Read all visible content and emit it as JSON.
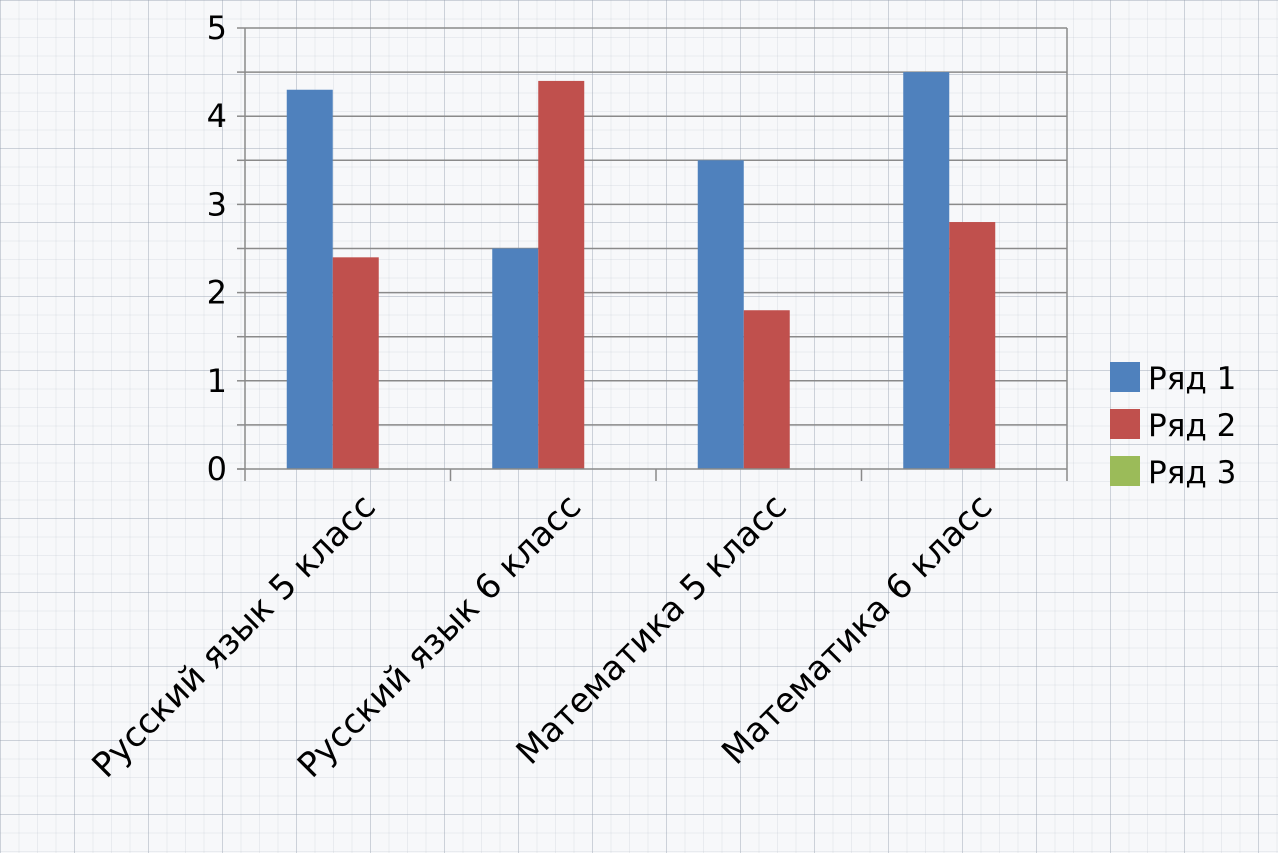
{
  "chart_data": {
    "type": "bar",
    "title": "",
    "xlabel": "",
    "ylabel": "",
    "categories": [
      "Русский язык 5 класс",
      "Русский язык 6 класс",
      "Математика 5 класс",
      "Математика 6 класс"
    ],
    "series": [
      {
        "name": "Ряд 1",
        "color": "#4f81bd",
        "values": [
          4.3,
          2.5,
          3.5,
          4.5
        ]
      },
      {
        "name": "Ряд 2",
        "color": "#c0504d",
        "values": [
          2.4,
          4.4,
          1.8,
          2.8
        ]
      },
      {
        "name": "Ряд 3",
        "color": "#9bbb59",
        "values": [
          0,
          0,
          0,
          0
        ]
      }
    ],
    "ylim": [
      0,
      5
    ],
    "yticks": [
      "0",
      "1",
      "2",
      "3",
      "4",
      "5"
    ],
    "grid": true,
    "legend_position": "right"
  }
}
